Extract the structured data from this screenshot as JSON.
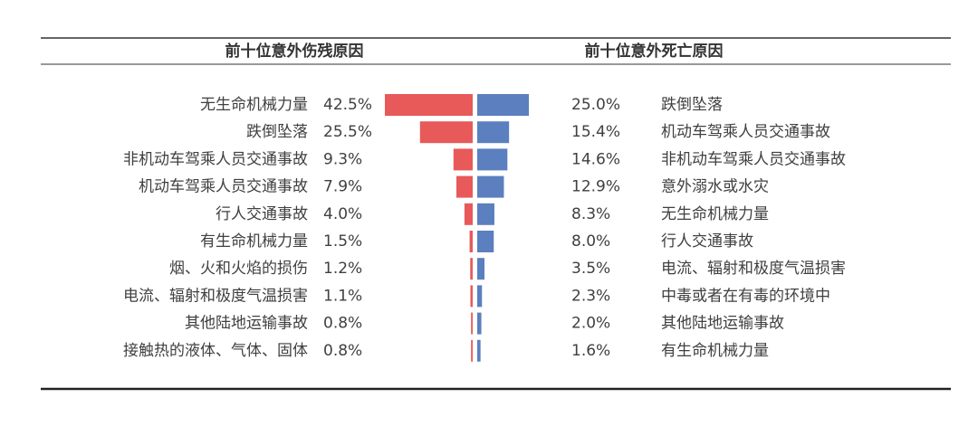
{
  "chart_data": [
    {
      "type": "bar",
      "title": "前十位意外伤残原因",
      "color": "#e8595a",
      "categories": [
        "无生命机械力量",
        "跌倒坠落",
        "非机动车驾乘人员交通事故",
        "机动车驾乘人员交通事故",
        "行人交通事故",
        "有生命机械力量",
        "烟、火和火焰的损伤",
        "电流、辐射和极度气温损害",
        "其他陆地运输事故",
        "接触热的液体、气体、固体"
      ],
      "values": [
        42.5,
        25.5,
        9.3,
        7.9,
        4.0,
        1.5,
        1.2,
        1.1,
        0.8,
        0.8
      ],
      "value_labels": [
        "42.5%",
        "25.5%",
        "9.3%",
        "7.9%",
        "4.0%",
        "1.5%",
        "1.2%",
        "1.1%",
        "0.8%",
        "0.8%"
      ]
    },
    {
      "type": "bar",
      "title": "前十位意外死亡原因",
      "color": "#5b7fbf",
      "categories": [
        "跌倒坠落",
        "机动车驾乘人员交通事故",
        "非机动车驾乘人员交通事故",
        "意外溺水或水灾",
        "无生命机械力量",
        "行人交通事故",
        "电流、辐射和极度气温损害",
        "中毒或者在有毒的环境中",
        "其他陆地运输事故",
        "有生命机械力量"
      ],
      "values": [
        25.0,
        15.4,
        14.6,
        12.9,
        8.3,
        8.0,
        3.5,
        2.3,
        2.0,
        1.6
      ],
      "value_labels": [
        "25.0%",
        "15.4%",
        "14.6%",
        "12.9%",
        "8.3%",
        "8.0%",
        "3.5%",
        "2.3%",
        "2.0%",
        "1.6%"
      ]
    }
  ]
}
